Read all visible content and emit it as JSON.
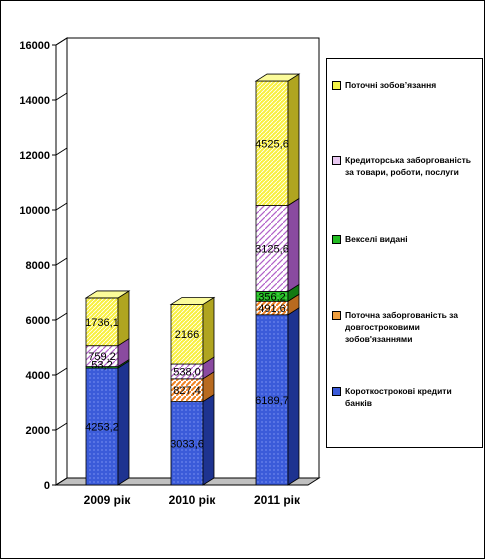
{
  "chart_data": {
    "type": "bar",
    "stacked": true,
    "three_d": true,
    "categories": [
      "2009 рік",
      "2010 рік",
      "2011 рік"
    ],
    "series": [
      {
        "name": "Короткострокові кредити банків",
        "values": [
          4253.2,
          3033.6,
          6189.7
        ],
        "labels": [
          "4253,2",
          "3033,6",
          "6189,7"
        ],
        "color": "#3b5bd9"
      },
      {
        "name": "Поточна заборгованість за довгостроковими зобов'язаннями",
        "values": [
          0,
          827.4,
          491.6
        ],
        "labels": [
          "",
          "827,4",
          "491,6"
        ],
        "color": "#f0a040"
      },
      {
        "name": "Векселі видані",
        "values": [
          53.2,
          0,
          356.2
        ],
        "labels": [
          "53,2",
          "",
          "356,2"
        ],
        "color": "#22bb22"
      },
      {
        "name": "Кредиторська заборгованість за товари, роботи, послуги",
        "values": [
          759.2,
          538.0,
          3125.6
        ],
        "labels": [
          "759,2",
          "538,0",
          "3125,6"
        ],
        "color": "#d8a0e0"
      },
      {
        "name": "Поточні зобов’язання",
        "values": [
          1736.1,
          2166,
          4525.6
        ],
        "labels": [
          "1736,1",
          "2166",
          "4525,6"
        ],
        "color": "#f5f54a"
      }
    ],
    "ylim": [
      0,
      16000
    ],
    "yticks": [
      "0",
      "2000",
      "4000",
      "6000",
      "8000",
      "10000",
      "12000",
      "14000",
      "16000"
    ],
    "legend_position": "right",
    "grid": false
  },
  "legend": {
    "items": [
      "Поточні зобов’язання",
      "Кредиторська заборгованість за товари, роботи, послуги",
      "Векселі видані",
      "Поточна заборгованість за довгостроковими зобов'язаннями",
      "Короткострокові кредити банків"
    ]
  }
}
